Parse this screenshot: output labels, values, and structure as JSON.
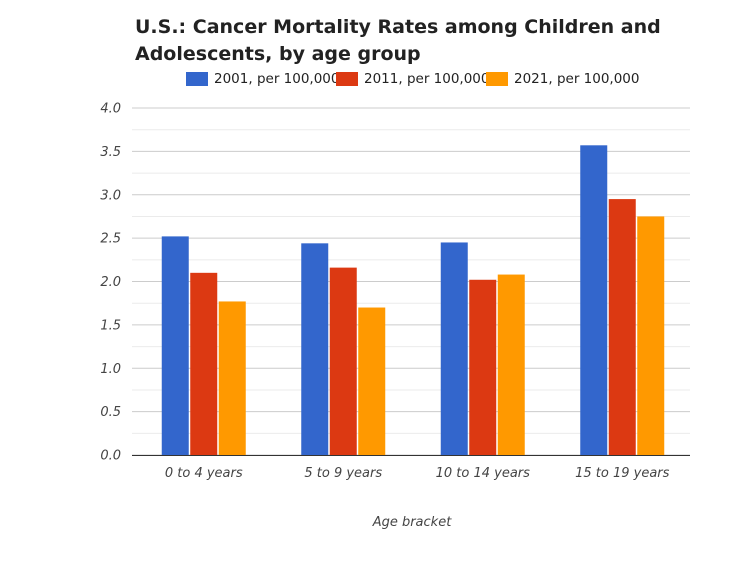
{
  "chart_data": {
    "type": "bar",
    "title": "U.S.: Cancer Mortality Rates among Children and Adolescents, by age group",
    "xlabel": "Age bracket",
    "ylabel": "",
    "categories": [
      "0 to 4 years",
      "5 to 9 years",
      "10 to 14 years",
      "15 to 19 years"
    ],
    "series": [
      {
        "name": "2001, per 100,000",
        "color": "#3366cc",
        "values": [
          2.52,
          2.44,
          2.45,
          3.57
        ]
      },
      {
        "name": "2011, per 100,000",
        "color": "#dc3912",
        "values": [
          2.1,
          2.16,
          2.02,
          2.95
        ]
      },
      {
        "name": "2021, per 100,000",
        "color": "#ff9900",
        "values": [
          1.77,
          1.7,
          2.08,
          2.75
        ]
      }
    ],
    "ylim": [
      0,
      4
    ],
    "yticks": [
      "0.0",
      "0.5",
      "1.0",
      "1.5",
      "2.0",
      "2.5",
      "3.0",
      "3.5",
      "4.0"
    ],
    "grid": true,
    "legend": "top"
  }
}
